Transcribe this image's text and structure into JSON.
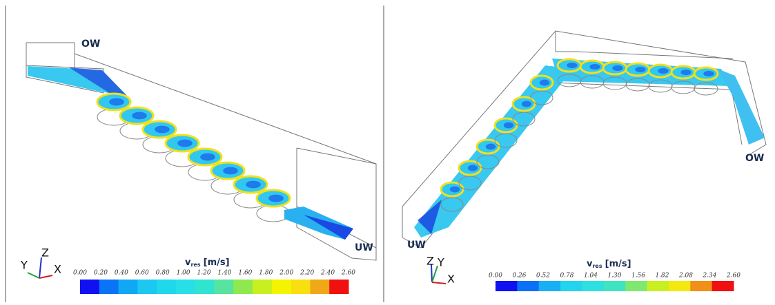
{
  "panels": [
    {
      "upstream_label": "OW",
      "downstream_label": "UW",
      "axes": {
        "y": "Y",
        "z": "Z",
        "x": "X"
      },
      "colorbar": {
        "symbol": "v",
        "subscript": "res",
        "unit": "[m/s]",
        "ticks": [
          "0.00",
          "0.20",
          "0.40",
          "0.60",
          "0.80",
          "1.00",
          "1.20",
          "1.40",
          "1.60",
          "1.80",
          "2.00",
          "2.20",
          "2.40",
          "2.60"
        ],
        "colors": [
          "#1010f0",
          "#0a74f6",
          "#10a8f4",
          "#1cc8f0",
          "#20d8ec",
          "#28dfe8",
          "#30e4d0",
          "#58e4a0",
          "#90e850",
          "#c8f020",
          "#f4f400",
          "#f8e010",
          "#f0a818",
          "#f01010"
        ]
      }
    },
    {
      "upstream_label": "OW",
      "downstream_label": "UW",
      "axes": {
        "y": "Y",
        "z": "Z",
        "x": "X"
      },
      "colorbar": {
        "symbol": "v",
        "subscript": "res",
        "unit": "[m/s]",
        "ticks": [
          "0.00",
          "0.26",
          "0.52",
          "0.78",
          "1.04",
          "1.30",
          "1.56",
          "1.82",
          "2.08",
          "2.34",
          "2.60"
        ],
        "colors": [
          "#1010f0",
          "#0a70f6",
          "#18b0f4",
          "#22d4ee",
          "#2ee0e0",
          "#40e4c0",
          "#80e870",
          "#c8f020",
          "#f4e810",
          "#f09018",
          "#f01010"
        ]
      }
    }
  ]
}
